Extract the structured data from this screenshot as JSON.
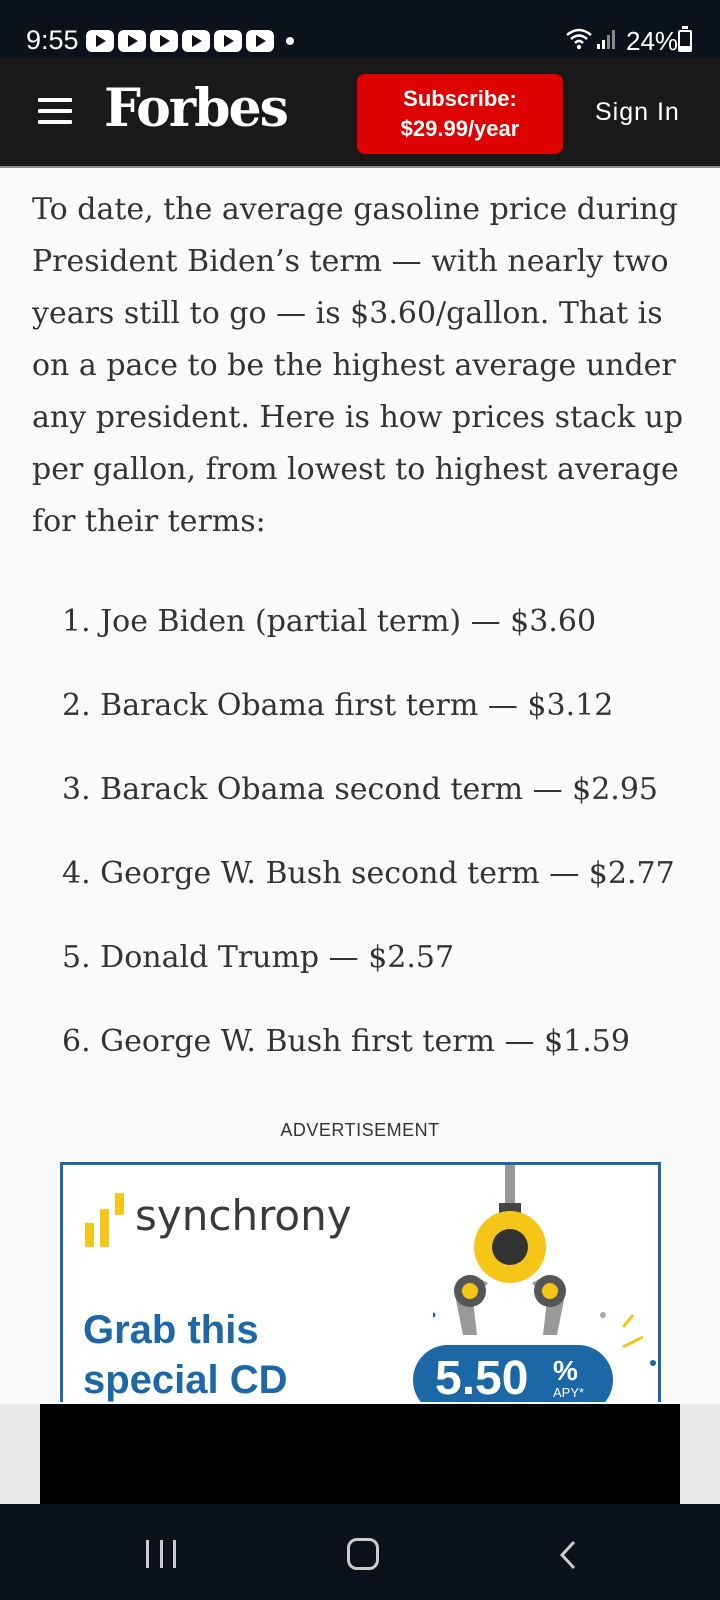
{
  "status_bar": {
    "time": "9:55",
    "battery": "24%",
    "battery_level": 0.24,
    "notification_icons": [
      "youtube-icon",
      "youtube-icon",
      "youtube-icon",
      "youtube-icon",
      "youtube-icon",
      "youtube-icon"
    ]
  },
  "header": {
    "logo": "Forbes",
    "subscribe_line1": "Subscribe:",
    "subscribe_line2": "$29.99/year",
    "sign_in": "Sign In",
    "accent_color": "#dd0101"
  },
  "article": {
    "paragraph": "To date, the average gasoline price during President Biden’s term — with nearly two years still to go — is $3.60/gallon. That is on a pace to be the highest average under any president. Here is how prices stack up per gallon, from lowest to highest average for their terms:",
    "list": [
      "1. Joe Biden (partial term) — $3.60",
      "2. Barack Obama first term — $3.12",
      "3. Barack Obama second term — $2.95",
      "4. George W. Bush second term — $2.77",
      "5. Donald Trump — $2.57",
      "6. George W. Bush first term — $1.59"
    ]
  },
  "ad": {
    "label": "ADVERTISEMENT",
    "brand": "synchrony",
    "headline": "Grab this special CD",
    "rate": "5.50",
    "rate_pct": "%",
    "rate_apy": "APY*",
    "brand_color": "#1c67a5",
    "accent_color": "#f5c518"
  }
}
